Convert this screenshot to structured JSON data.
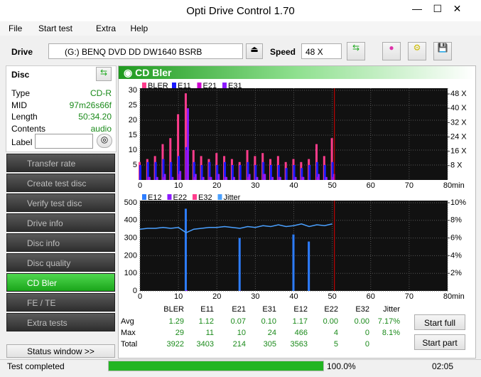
{
  "window": {
    "title": "Opti Drive Control 1.70"
  },
  "menu": [
    "File",
    "Start test",
    "Extra",
    "Help"
  ],
  "toolbar": {
    "drive_label": "Drive",
    "drive": "(G:)  BENQ DVD DD DW1640 BSRB",
    "speed_label": "Speed",
    "speed": "48 X"
  },
  "disc": {
    "header": "Disc",
    "fields": [
      {
        "label": "Type",
        "value": "CD-R"
      },
      {
        "label": "MID",
        "value": "97m26s66f"
      },
      {
        "label": "Length",
        "value": "50:34.20"
      },
      {
        "label": "Contents",
        "value": "audio"
      }
    ],
    "label_field": "Label"
  },
  "nav": [
    "Transfer rate",
    "Create test disc",
    "Verify test disc",
    "Drive info",
    "Disc info",
    "Disc quality",
    "CD Bler",
    "FE / TE",
    "Extra tests"
  ],
  "nav_active": 6,
  "status_button": "Status window >>",
  "panel_title": "CD Bler",
  "charts": [
    {
      "type": "bar",
      "x": [
        0,
        2,
        4,
        6,
        8,
        10,
        12,
        14,
        16,
        18,
        20,
        22,
        24,
        26,
        28,
        30,
        32,
        34,
        36,
        38,
        40,
        42,
        44,
        46,
        48,
        50
      ],
      "series": [
        {
          "name": "BLER",
          "color": "#ff3c8c",
          "values": [
            6,
            7,
            8,
            12,
            14,
            22,
            29,
            10,
            8,
            7,
            9,
            8,
            7,
            6,
            10,
            8,
            9,
            7,
            8,
            6,
            7,
            6,
            7,
            12,
            8,
            14
          ]
        },
        {
          "name": "E11",
          "color": "#1a1aff",
          "values": [
            5,
            6,
            6,
            7,
            6,
            8,
            11,
            6,
            5,
            6,
            5,
            6,
            5,
            5,
            6,
            5,
            6,
            5,
            5,
            4,
            5,
            4,
            5,
            6,
            5,
            6
          ]
        },
        {
          "name": "E21",
          "color": "#d000d0",
          "values": [
            0,
            1,
            0,
            1,
            0,
            2,
            10,
            1,
            0,
            1,
            0,
            1,
            0,
            0,
            1,
            0,
            2,
            0,
            1,
            0,
            0,
            1,
            0,
            1,
            0,
            1
          ]
        },
        {
          "name": "E31",
          "color": "#8c1aff",
          "values": [
            0,
            1,
            1,
            2,
            1,
            3,
            24,
            2,
            1,
            1,
            2,
            1,
            1,
            0,
            2,
            1,
            2,
            1,
            1,
            0,
            1,
            1,
            0,
            2,
            1,
            2
          ]
        }
      ],
      "xlim": [
        0,
        80
      ],
      "xticks": [
        0,
        10,
        20,
        30,
        40,
        50,
        60,
        70,
        80
      ],
      "x_unit": "min",
      "ylim": [
        0,
        30
      ],
      "yticks": [
        5,
        10,
        15,
        20,
        25,
        30
      ],
      "y2lim": [
        0,
        50
      ],
      "y2ticks": [
        {
          "value": 8,
          "label": "8 X"
        },
        {
          "value": 16,
          "label": "16 X"
        },
        {
          "value": 24,
          "label": "24 X"
        },
        {
          "value": 32,
          "label": "32 X"
        },
        {
          "value": 40,
          "label": "40 X"
        },
        {
          "value": 48,
          "label": "48 X"
        }
      ],
      "end_marker": 50.57
    },
    {
      "type": "bar",
      "x": [
        0,
        2,
        4,
        6,
        8,
        10,
        12,
        14,
        16,
        18,
        20,
        22,
        24,
        26,
        28,
        30,
        32,
        34,
        36,
        38,
        40,
        42,
        44,
        46,
        48,
        50
      ],
      "series": [
        {
          "name": "E12",
          "color": "#2d7dff",
          "values": [
            0,
            0,
            0,
            0,
            0,
            0,
            466,
            0,
            0,
            0,
            0,
            0,
            0,
            300,
            0,
            0,
            0,
            0,
            0,
            0,
            320,
            0,
            280,
            0,
            0,
            0
          ]
        },
        {
          "name": "E22",
          "color": "#8c1aff",
          "values": [
            0,
            0,
            0,
            0,
            0,
            0,
            4,
            0,
            0,
            0,
            0,
            0,
            0,
            1,
            0,
            0,
            0,
            0,
            0,
            0,
            0,
            0,
            0,
            0,
            0,
            0
          ]
        },
        {
          "name": "E32",
          "color": "#ff3c8c",
          "values": [
            0,
            0,
            0,
            0,
            0,
            0,
            0,
            0,
            0,
            0,
            0,
            0,
            0,
            0,
            0,
            0,
            0,
            0,
            0,
            0,
            0,
            0,
            0,
            0,
            0,
            0
          ]
        },
        {
          "name": "Jitter",
          "color": "#4aa0ff",
          "axis": "y2",
          "line": true,
          "values": [
            7.0,
            7.1,
            7.1,
            7.2,
            7.1,
            7.2,
            6.6,
            7.0,
            7.1,
            7.2,
            7.2,
            7.3,
            7.2,
            7.1,
            7.3,
            7.2,
            7.4,
            7.3,
            7.5,
            7.3,
            7.4,
            7.6,
            7.3,
            7.5,
            7.4,
            7.6
          ]
        }
      ],
      "xlim": [
        0,
        80
      ],
      "xticks": [
        0,
        10,
        20,
        30,
        40,
        50,
        60,
        70,
        80
      ],
      "x_unit": "min",
      "ylim": [
        0,
        500
      ],
      "yticks": [
        0,
        100,
        200,
        300,
        400,
        500
      ],
      "y2lim": [
        0,
        10
      ],
      "y2ticks": [
        {
          "value": 2,
          "label": "2%"
        },
        {
          "value": 4,
          "label": "4%"
        },
        {
          "value": 6,
          "label": "6%"
        },
        {
          "value": 8,
          "label": "8%"
        },
        {
          "value": 10,
          "label": "10%"
        }
      ],
      "end_marker": 50.57
    }
  ],
  "stats": {
    "columns": [
      "BLER",
      "E11",
      "E21",
      "E31",
      "E12",
      "E22",
      "E32",
      "Jitter"
    ],
    "rows": [
      {
        "label": "Avg",
        "values": [
          "1.29",
          "1.12",
          "0.07",
          "0.10",
          "1.17",
          "0.00",
          "0.00",
          "7.17%"
        ]
      },
      {
        "label": "Max",
        "values": [
          "29",
          "11",
          "10",
          "24",
          "466",
          "4",
          "0",
          "8.1%"
        ]
      },
      {
        "label": "Total",
        "values": [
          "3922",
          "3403",
          "214",
          "305",
          "3563",
          "5",
          "0"
        ]
      }
    ]
  },
  "buttons": [
    "Start full",
    "Start part"
  ],
  "statusbar": {
    "text": "Test completed",
    "progress": 100,
    "progress_label": "100.0%",
    "time": "02:05"
  }
}
